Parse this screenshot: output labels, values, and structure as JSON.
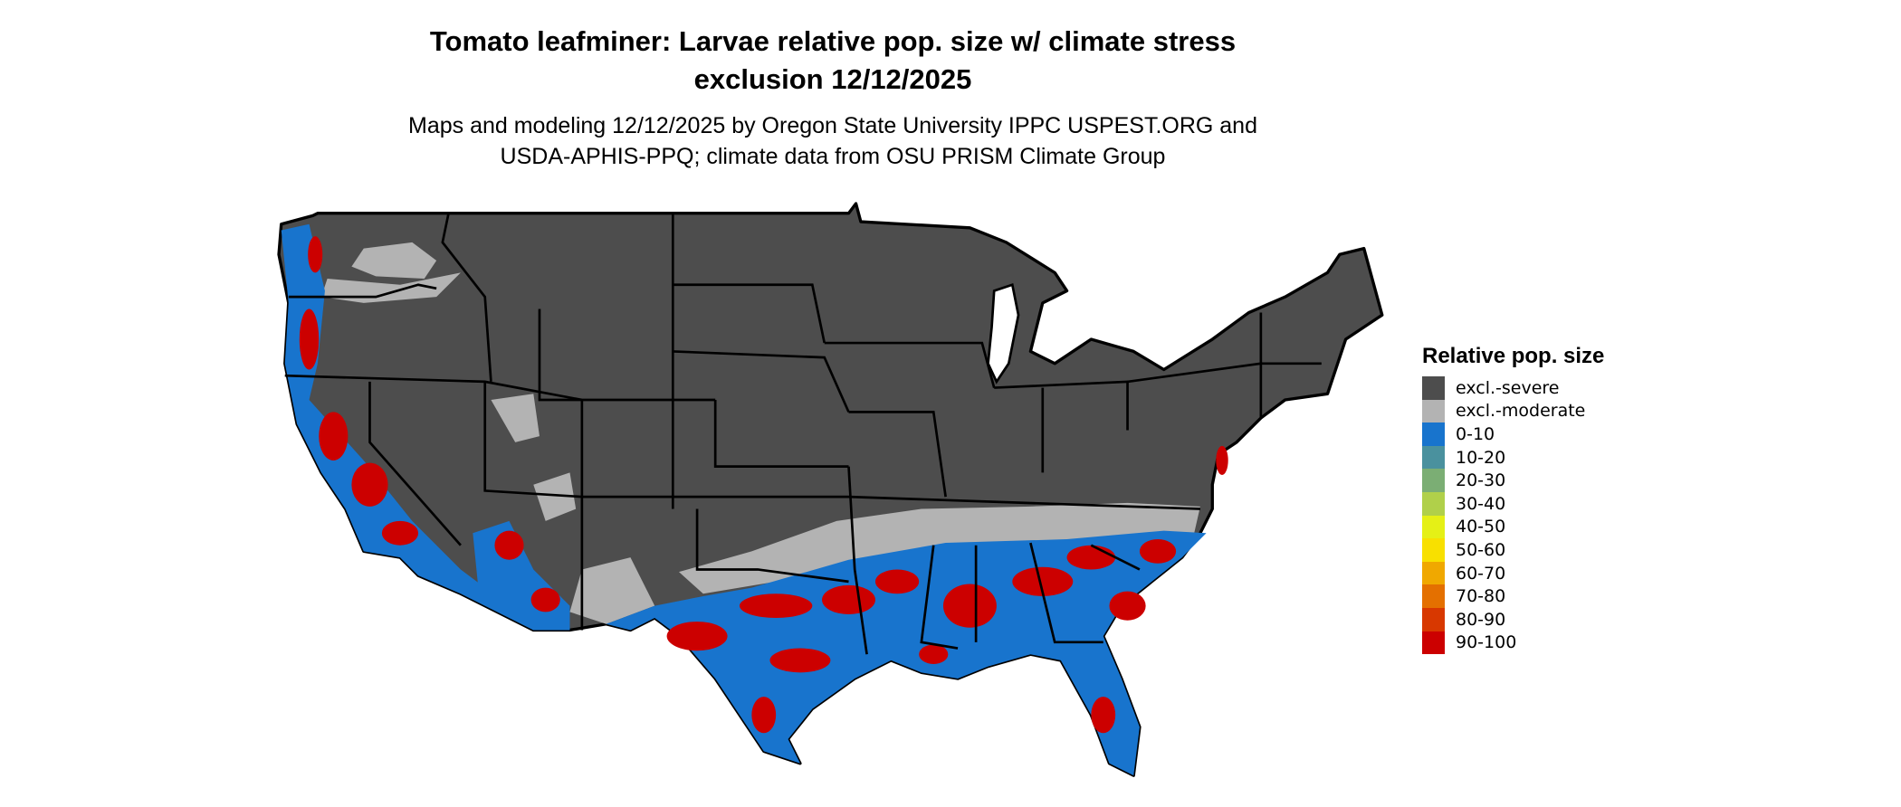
{
  "title": {
    "line1": "Tomato leafminer: Larvae relative pop. size w/ climate stress",
    "line2": "exclusion 12/12/2025"
  },
  "subtitle": {
    "line1": "Maps and modeling 12/12/2025 by Oregon State University IPPC USPEST.ORG and",
    "line2": "USDA-APHIS-PPQ; climate data from OSU PRISM Climate Group"
  },
  "legend": {
    "title": "Relative pop. size",
    "items": [
      {
        "label": "excl.-severe",
        "color": "#4d4d4d"
      },
      {
        "label": "excl.-moderate",
        "color": "#b3b3b3"
      },
      {
        "label": "0-10",
        "color": "#1874cd"
      },
      {
        "label": "10-20",
        "color": "#4a919e"
      },
      {
        "label": "20-30",
        "color": "#7bae74"
      },
      {
        "label": "30-40",
        "color": "#b0d04a"
      },
      {
        "label": "40-50",
        "color": "#e5f016"
      },
      {
        "label": "50-60",
        "color": "#f8e000"
      },
      {
        "label": "60-70",
        "color": "#f0a800"
      },
      {
        "label": "70-80",
        "color": "#e47000"
      },
      {
        "label": "80-90",
        "color": "#d83800"
      },
      {
        "label": "90-100",
        "color": "#cc0000"
      }
    ]
  }
}
